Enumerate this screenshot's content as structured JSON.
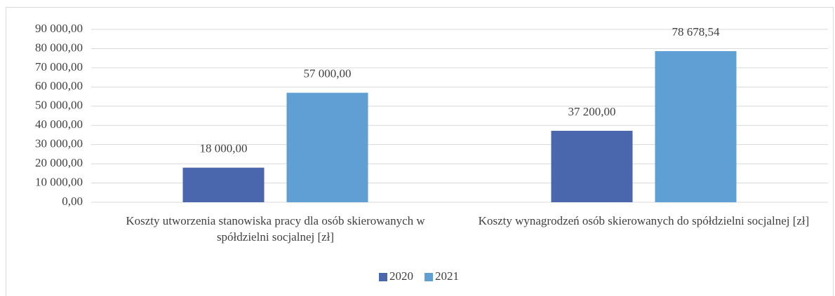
{
  "chart_data": {
    "type": "bar",
    "categories": [
      "Koszty utworzenia stanowiska pracy dla osób skierowanych w spółdzielni socjalnej [zł]",
      "Koszty wynagrodzeń osób skierowanych do spółdzielni socjalnej [zł]"
    ],
    "series": [
      {
        "name": "2020",
        "color": "#4a66ad",
        "values": [
          18000,
          37200
        ],
        "value_labels": [
          "18 000,00",
          "37 200,00"
        ]
      },
      {
        "name": "2021",
        "color": "#5f9fd3",
        "values": [
          57000,
          78678.54
        ],
        "value_labels": [
          "57 000,00",
          "78 678,54"
        ]
      }
    ],
    "ylim": [
      0,
      90000
    ],
    "yticks": [
      {
        "value": 0,
        "label": "0,00"
      },
      {
        "value": 10000,
        "label": "10 000,00"
      },
      {
        "value": 20000,
        "label": "20 000,00"
      },
      {
        "value": 30000,
        "label": "30 000,00"
      },
      {
        "value": 40000,
        "label": "40 000,00"
      },
      {
        "value": 50000,
        "label": "50 000,00"
      },
      {
        "value": 60000,
        "label": "60 000,00"
      },
      {
        "value": 70000,
        "label": "70 000,00"
      },
      {
        "value": 80000,
        "label": "80 000,00"
      },
      {
        "value": 90000,
        "label": "90 000,00"
      }
    ],
    "grid": true,
    "legend": "bottom"
  }
}
